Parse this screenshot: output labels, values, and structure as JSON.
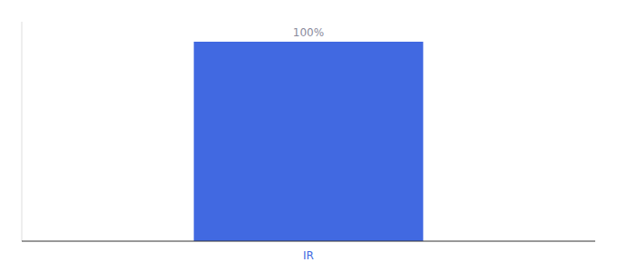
{
  "chart_data": {
    "type": "bar",
    "categories": [
      "IR"
    ],
    "values": [
      100
    ],
    "value_labels": [
      "100%"
    ],
    "data_labels": true,
    "color": "#4169e1",
    "ylim": [
      0,
      110
    ],
    "grid": false,
    "tick_labels": "x"
  }
}
